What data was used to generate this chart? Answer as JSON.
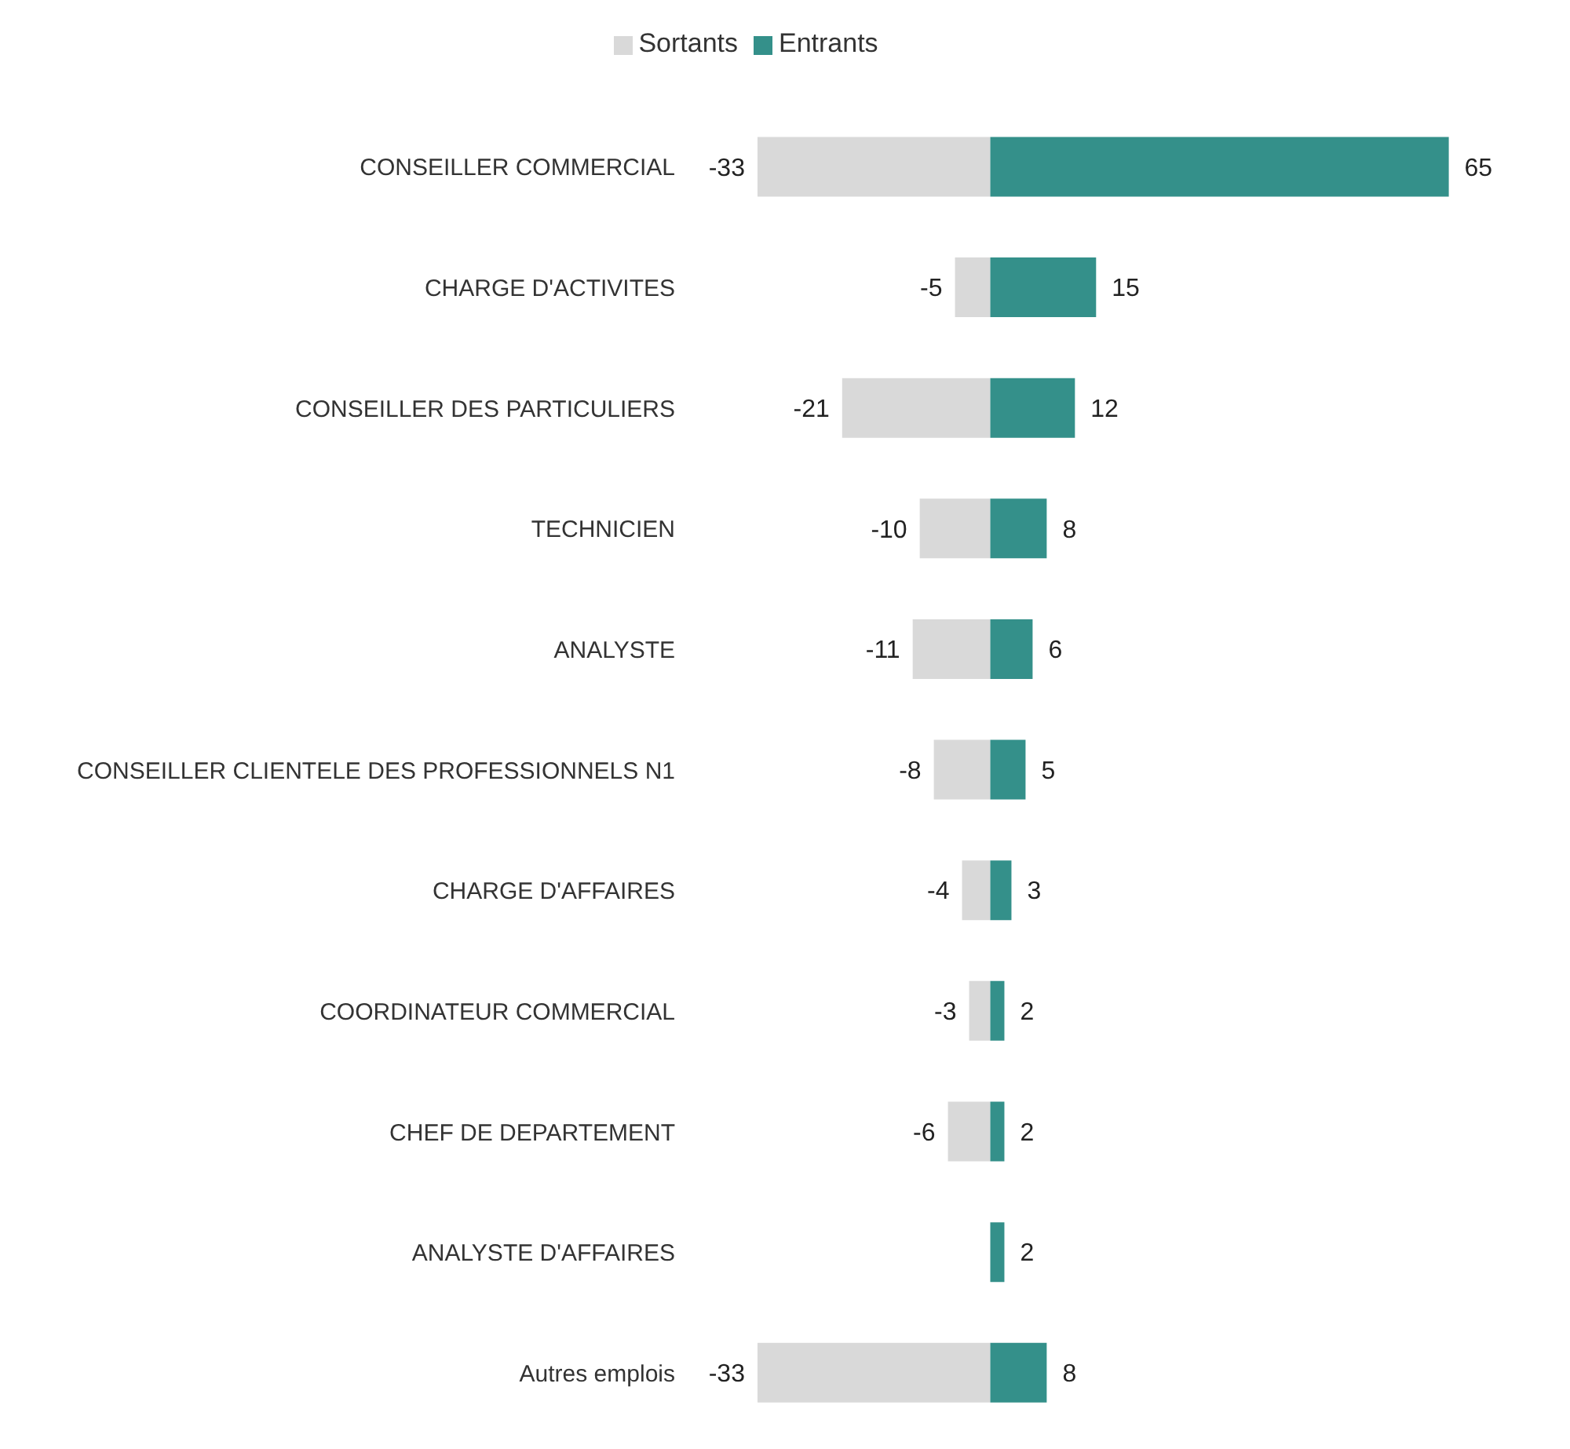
{
  "chart_data": {
    "type": "bar",
    "orientation": "horizontal",
    "stacked": true,
    "categories": [
      "CONSEILLER COMMERCIAL",
      "CHARGE D'ACTIVITES",
      "CONSEILLER DES PARTICULIERS",
      "TECHNICIEN",
      "ANALYSTE",
      "CONSEILLER CLIENTELE DES PROFESSIONNELS N1",
      "CHARGE D'AFFAIRES",
      "COORDINATEUR COMMERCIAL",
      "CHEF DE DEPARTEMENT",
      "ANALYSTE D'AFFAIRES",
      "Autres emplois"
    ],
    "series": [
      {
        "name": "Sortants",
        "color": "#d9d9d9",
        "values": [
          -33,
          -5,
          -21,
          -10,
          -11,
          -8,
          -4,
          -3,
          -6,
          null,
          -33
        ]
      },
      {
        "name": "Entrants",
        "color": "#34908a",
        "values": [
          65,
          15,
          12,
          8,
          6,
          5,
          3,
          2,
          2,
          2,
          8
        ]
      }
    ],
    "data_labels": true,
    "legend": "top",
    "grid": false
  }
}
